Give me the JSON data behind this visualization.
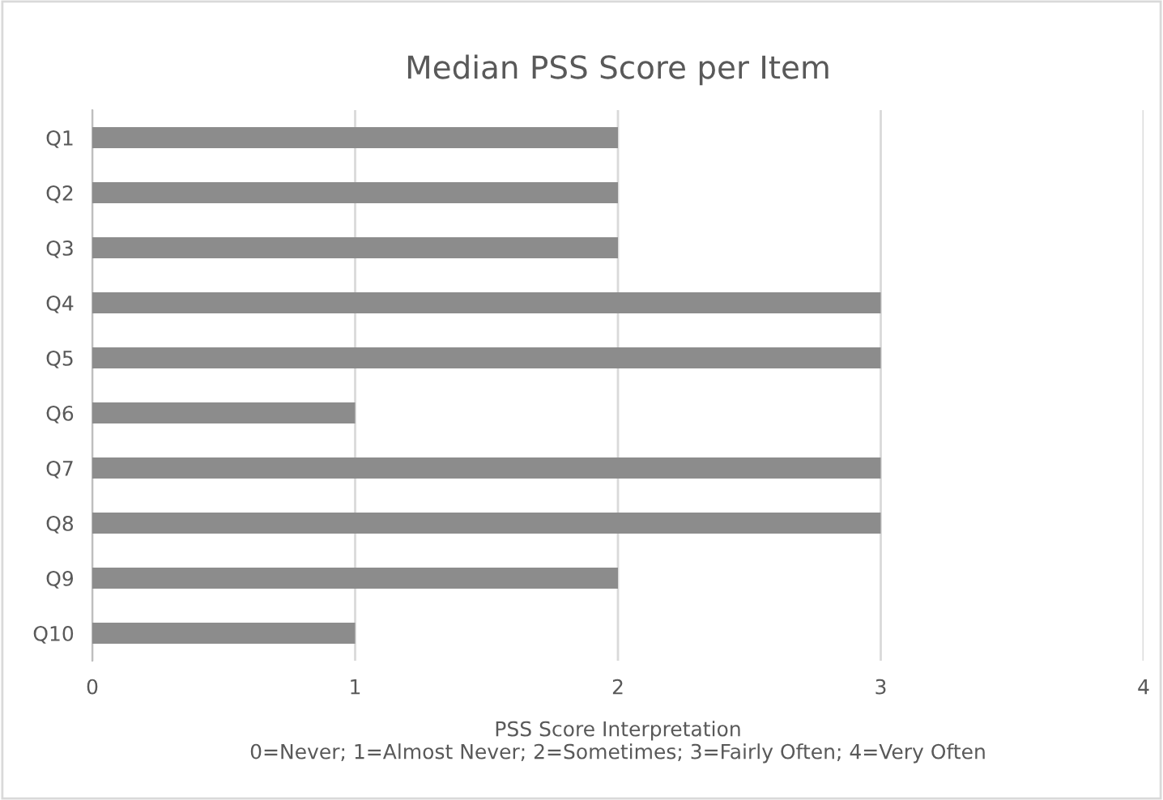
{
  "chart_data": {
    "type": "bar",
    "orientation": "horizontal",
    "title": "Median PSS Score per Item",
    "xlabel": "PSS Score Interpretation\n0=Never; 1=Almost Never; 2=Sometimes; 3=Fairly Often; 4=Very Often",
    "categories": [
      "Q1",
      "Q2",
      "Q3",
      "Q4",
      "Q5",
      "Q6",
      "Q7",
      "Q8",
      "Q9",
      "Q10"
    ],
    "values": [
      2,
      2,
      2,
      3,
      3,
      1,
      3,
      3,
      2,
      1
    ],
    "color": "#8c8c8c",
    "xlim": [
      0,
      4
    ],
    "xticks": [
      0,
      1,
      2,
      3,
      4
    ],
    "grid": "x",
    "legend": false
  }
}
